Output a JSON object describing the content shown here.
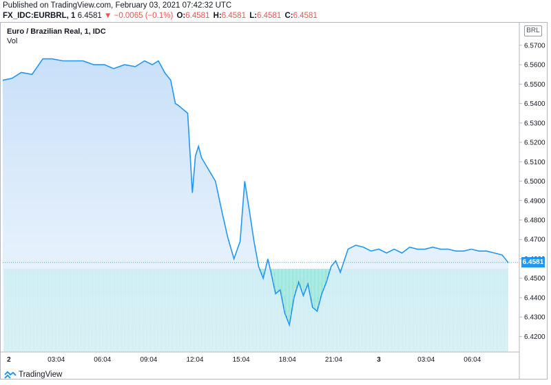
{
  "header": {
    "published": "Published on TradingView.com, February 03, 2021 07:42:32 UTC",
    "symbol": "FX_IDC:EURBRL, 1",
    "last": "6.4581",
    "change": "▼ −0.0065 (−0.1%)",
    "o_label": "O:",
    "o_value": "6.4581",
    "h_label": "H:",
    "h_value": "6.4581",
    "l_label": "L:",
    "l_value": "6.4581",
    "c_label": "C:",
    "c_value": "6.4581"
  },
  "legend": {
    "title": "Euro / Brazilian Real, 1, IDC",
    "vol": "Vol"
  },
  "currency_badge": "BRL",
  "last_price_tag": "6.4581",
  "footer_brand": "TradingView",
  "colors": {
    "line": "#2196f3",
    "area_top": "#cfe5fb",
    "volume": "#8fd1c6",
    "price_tag": "#2196f3",
    "red": "#ef5350"
  },
  "chart_data": {
    "type": "area",
    "title": "Euro / Brazilian Real, 1, IDC",
    "ylabel": "BRL",
    "ylim": [
      6.412,
      6.582
    ],
    "y_ticks": [
      "6.4200",
      "6.4300",
      "6.4400",
      "6.4500",
      "6.4600",
      "6.4700",
      "6.4800",
      "6.4900",
      "6.5000",
      "6.5100",
      "6.5200",
      "6.5300",
      "6.5400",
      "6.5500",
      "6.5600",
      "6.5700"
    ],
    "y_tick_values": [
      6.42,
      6.43,
      6.44,
      6.45,
      6.46,
      6.47,
      6.48,
      6.49,
      6.5,
      6.51,
      6.52,
      6.53,
      6.54,
      6.55,
      6.56,
      6.57
    ],
    "x_unit": "hours since Feb 2 00:00 UTC",
    "x_range": [
      -0.4,
      32.4
    ],
    "x_tick_labels": [
      "2",
      "03:04",
      "06:04",
      "09:04",
      "12:04",
      "15:04",
      "18:04",
      "21:04",
      "3",
      "03:04",
      "06:04"
    ],
    "x_tick_hours": [
      0,
      3.067,
      6.067,
      9.067,
      12.067,
      15.067,
      18.067,
      21.067,
      24,
      27.067,
      30.067
    ],
    "grid": false,
    "series": [
      {
        "values_x": [
          -0.4,
          0.2,
          0.8,
          1.5,
          2.2,
          2.8,
          3.5,
          4.2,
          4.8,
          5.5,
          6.2,
          6.8,
          7.5,
          8.2,
          8.8,
          9.3,
          9.7,
          10.1,
          10.5,
          10.8,
          11.0,
          11.3,
          11.6,
          11.9,
          12.1,
          12.3,
          12.5,
          12.8,
          13.1,
          13.4,
          13.8,
          14.2,
          14.6,
          15.0,
          15.3,
          15.6,
          15.9,
          16.2,
          16.5,
          16.8,
          17.0,
          17.3,
          17.6,
          17.9,
          18.2,
          18.5,
          18.8,
          19.1,
          19.4,
          19.7,
          20.0,
          20.3,
          20.6,
          20.9,
          21.2,
          21.5,
          22.0,
          22.5,
          23.0,
          23.5,
          24.0,
          24.5,
          25.0,
          25.5,
          26.0,
          26.5,
          27.0,
          27.5,
          28.0,
          28.5,
          29.0,
          29.5,
          30.0,
          30.5,
          31.0,
          31.5,
          32.0,
          32.4
        ],
        "values_y": [
          6.552,
          6.553,
          6.556,
          6.555,
          6.563,
          6.563,
          6.562,
          6.562,
          6.562,
          6.56,
          6.56,
          6.558,
          6.56,
          6.559,
          6.562,
          6.56,
          6.562,
          6.556,
          6.552,
          6.54,
          6.539,
          6.537,
          6.535,
          6.494,
          6.513,
          6.518,
          6.512,
          6.508,
          6.504,
          6.5,
          6.485,
          6.471,
          6.46,
          6.469,
          6.5,
          6.485,
          6.469,
          6.456,
          6.45,
          6.46,
          6.453,
          6.442,
          6.444,
          6.432,
          6.426,
          6.44,
          6.448,
          6.441,
          6.447,
          6.435,
          6.433,
          6.442,
          6.448,
          6.456,
          6.459,
          6.453,
          6.465,
          6.467,
          6.466,
          6.464,
          6.465,
          6.463,
          6.465,
          6.463,
          6.466,
          6.465,
          6.465,
          6.466,
          6.465,
          6.465,
          6.464,
          6.464,
          6.465,
          6.464,
          6.464,
          6.463,
          6.462,
          6.458
        ]
      }
    ],
    "last_value": 6.4581,
    "volume": "constant bars across full session"
  }
}
